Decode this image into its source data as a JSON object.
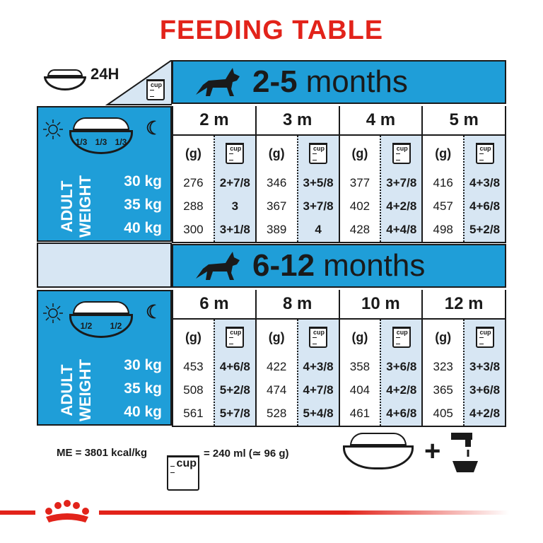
{
  "title": "FEEDING TABLE",
  "header": {
    "label_24h": "24H",
    "cup_label": "cup"
  },
  "sections": [
    {
      "age_number": "2-5",
      "age_word": "months",
      "portions": [
        "1/3",
        "1/3",
        "1/3"
      ],
      "weight_label": [
        "ADULT",
        "WEIGHT"
      ],
      "weights": [
        "30 kg",
        "35 kg",
        "40 kg"
      ],
      "months": [
        {
          "label": "2 m",
          "grams": [
            "276",
            "288",
            "300"
          ],
          "cups": [
            "2+7/8",
            "3",
            "3+1/8"
          ]
        },
        {
          "label": "3 m",
          "grams": [
            "346",
            "367",
            "389"
          ],
          "cups": [
            "3+5/8",
            "3+7/8",
            "4"
          ]
        },
        {
          "label": "4 m",
          "grams": [
            "377",
            "402",
            "428"
          ],
          "cups": [
            "3+7/8",
            "4+2/8",
            "4+4/8"
          ]
        },
        {
          "label": "5 m",
          "grams": [
            "416",
            "457",
            "498"
          ],
          "cups": [
            "4+3/8",
            "4+6/8",
            "5+2/8"
          ]
        }
      ]
    },
    {
      "age_number": "6-12",
      "age_word": "months",
      "portions": [
        "1/2",
        "1/2"
      ],
      "weight_label": [
        "ADULT",
        "WEIGHT"
      ],
      "weights": [
        "30 kg",
        "35 kg",
        "40 kg"
      ],
      "months": [
        {
          "label": "6 m",
          "grams": [
            "453",
            "508",
            "561"
          ],
          "cups": [
            "4+6/8",
            "5+2/8",
            "5+7/8"
          ]
        },
        {
          "label": "8 m",
          "grams": [
            "422",
            "474",
            "528"
          ],
          "cups": [
            "4+3/8",
            "4+7/8",
            "5+4/8"
          ]
        },
        {
          "label": "10 m",
          "grams": [
            "358",
            "404",
            "461"
          ],
          "cups": [
            "3+6/8",
            "4+2/8",
            "4+6/8"
          ]
        },
        {
          "label": "12 m",
          "grams": [
            "323",
            "365",
            "405"
          ],
          "cups": [
            "3+3/8",
            "3+6/8",
            "4+2/8"
          ]
        }
      ]
    }
  ],
  "grams_header": "(g)",
  "footer": {
    "energy": "ME = 3801 kcal/kg",
    "cup_label": "cup",
    "cup_equiv": "= 240 ml (≃ 96 g)",
    "plus": "+"
  },
  "colors": {
    "brand_red": "#e2231a",
    "table_blue": "#1f9ed8",
    "light_blue": "#d7e6f3"
  }
}
